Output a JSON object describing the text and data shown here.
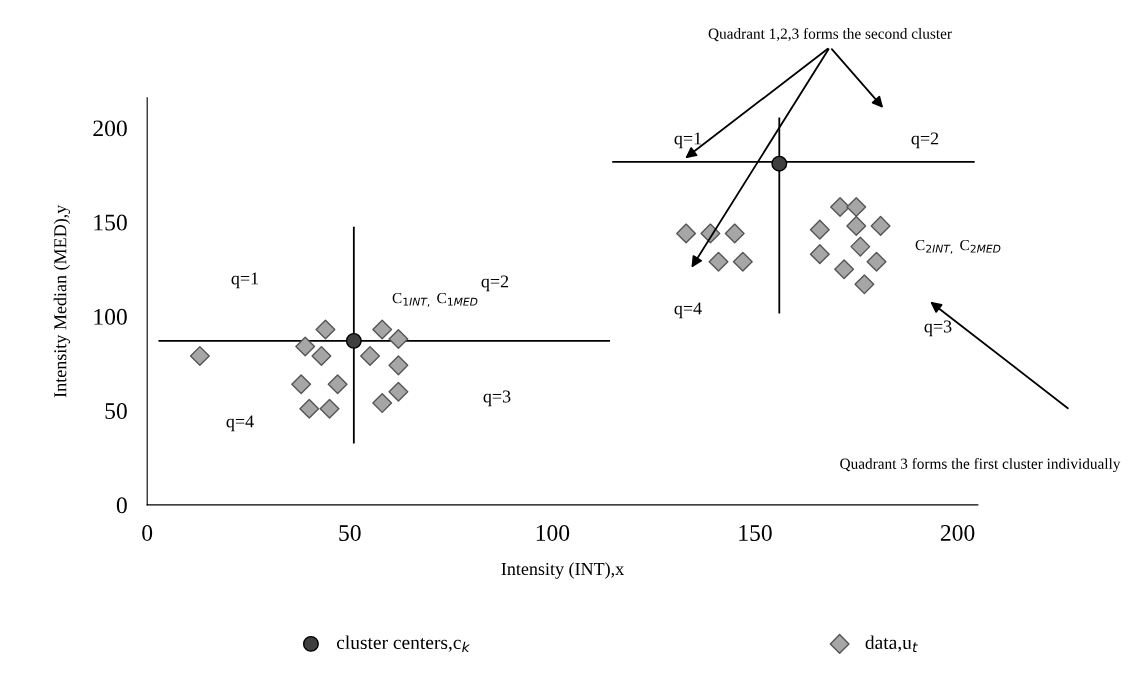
{
  "chart_data": {
    "type": "scatter",
    "xlabel": "Intensity (INT),x",
    "ylabel": "Intensity Median (MED),y",
    "xlim": [
      0,
      205
    ],
    "ylim": [
      0,
      216
    ],
    "xticks": [
      0,
      50,
      100,
      150,
      200
    ],
    "yticks": [
      0,
      50,
      100,
      150,
      200
    ],
    "grid": false,
    "legend": "bottom",
    "series": [
      {
        "name": "cluster centers,c$_{k}$",
        "marker": "circle",
        "color": "#3f3f3f",
        "x": [
          51,
          156
        ],
        "values": [
          87,
          181
        ]
      },
      {
        "name": "data,u$_{t}$",
        "marker": "diamond",
        "color": "#a6a6a6",
        "x": [
          13,
          39,
          44,
          43,
          38,
          47,
          40,
          45,
          55,
          58,
          62,
          62,
          62,
          58,
          133,
          139,
          145,
          141,
          147,
          166,
          171,
          175,
          175,
          181,
          166,
          176,
          172,
          180,
          177
        ],
        "values": [
          79,
          84,
          93,
          79,
          64,
          64,
          51,
          51,
          79,
          93,
          88,
          74,
          60,
          54,
          144,
          144,
          144,
          129,
          129,
          146,
          158,
          158,
          148,
          148,
          133,
          137,
          125,
          129,
          117
        ]
      },
      {
        "type": "line",
        "color": "#000000",
        "x": [
          3,
          114
        ],
        "values": [
          87,
          87
        ]
      },
      {
        "type": "line",
        "color": "#000000",
        "x": [
          51,
          51
        ],
        "values": [
          147,
          33
        ]
      },
      {
        "type": "line",
        "color": "#000000",
        "x": [
          115,
          204
        ],
        "values": [
          182,
          182
        ]
      },
      {
        "type": "line",
        "color": "#000000",
        "x": [
          156,
          156
        ],
        "values": [
          205,
          102
        ]
      }
    ],
    "annotations": [
      "Quadrant 1,2,3 forms the second cluster",
      "Quadrant 3 forms the first cluster individually",
      "q=1",
      "q=2",
      "q=3",
      "q=4",
      "C$_{1INT,}$ C$_{1MED}$",
      "q=1",
      "q=2",
      "q=4",
      "q=3",
      "C$_{2INT,}$ C$_{2MED}$"
    ]
  }
}
